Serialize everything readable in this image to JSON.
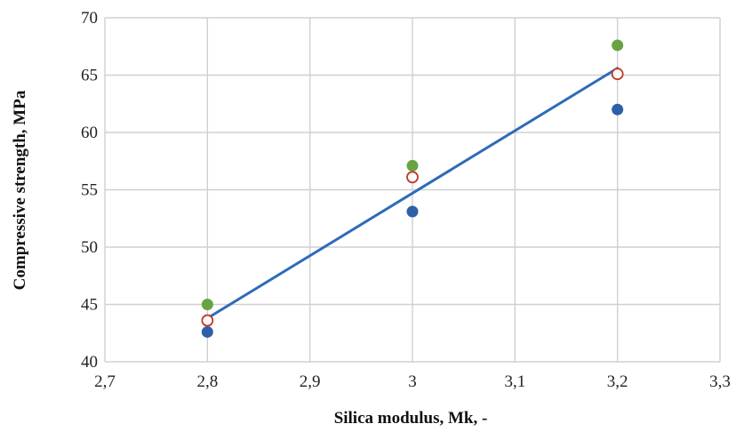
{
  "chart_data": {
    "type": "scatter",
    "title": "",
    "xlabel": "Silica modulus, Mk, -",
    "ylabel": "Compressive strength, MPa",
    "xlim": [
      2.7,
      3.3
    ],
    "ylim": [
      40,
      70
    ],
    "x_ticks": [
      "2,7",
      "2,8",
      "2,9",
      "3",
      "3,1",
      "3,2",
      "3,3"
    ],
    "y_ticks": [
      "40",
      "45",
      "50",
      "55",
      "60",
      "65",
      "70"
    ],
    "grid": true,
    "legend": "none",
    "x": [
      2.8,
      3.0,
      3.2
    ],
    "series": [
      {
        "values": [
          42.6,
          53.1,
          62.0
        ],
        "color": "#2e5fa8",
        "marker": "filled-circle"
      },
      {
        "values": [
          45.0,
          57.1,
          67.6
        ],
        "color": "#6aa342",
        "marker": "filled-circle"
      },
      {
        "values": [
          43.6,
          56.1,
          65.1
        ],
        "color": "#c0392b",
        "marker": "hollow-circle"
      }
    ],
    "trendline": {
      "x": [
        2.8,
        3.2
      ],
      "y": [
        43.8,
        65.6
      ],
      "color": "#2e6bb8"
    }
  }
}
